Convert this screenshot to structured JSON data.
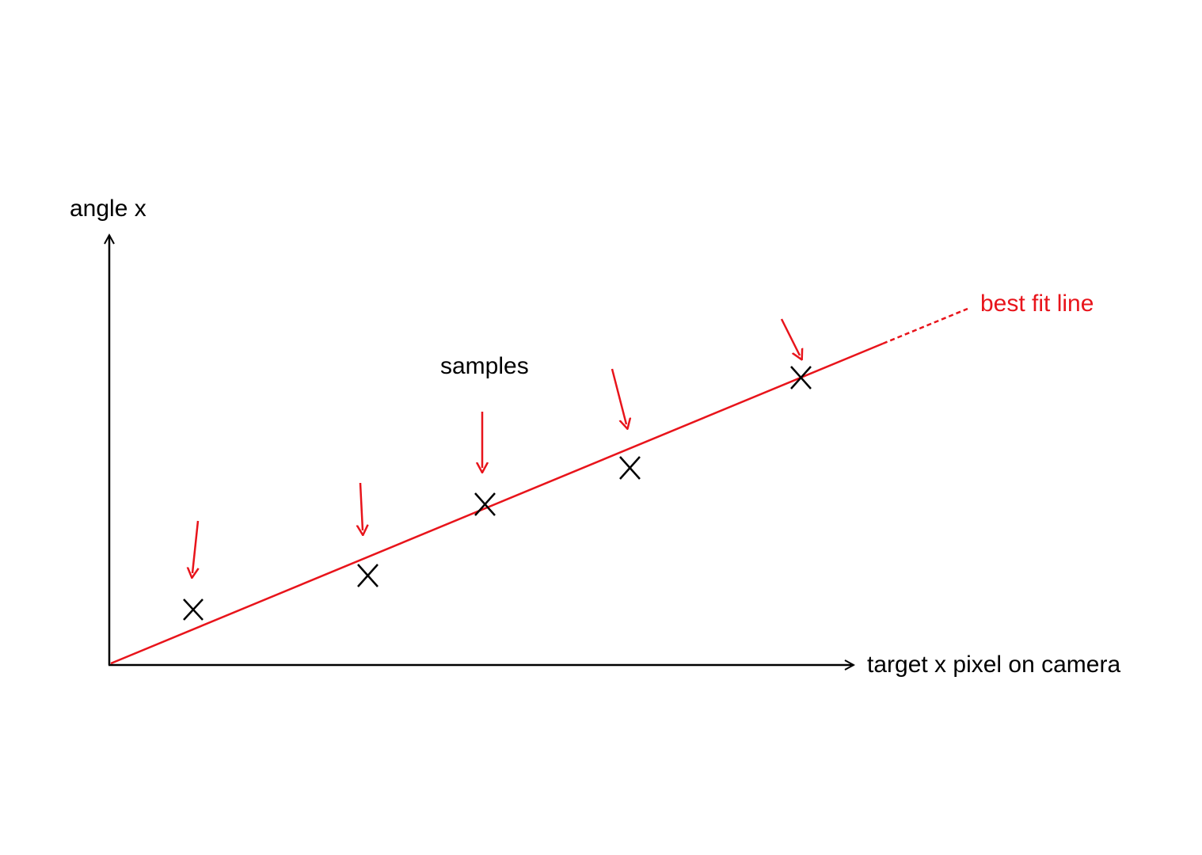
{
  "labels": {
    "y_axis": "angle x",
    "x_axis": "target x pixel on camera",
    "samples": "samples",
    "fit_line": "best fit line"
  },
  "colors": {
    "axis": "#000000",
    "fit_line": "#e8141b",
    "marker": "#000000",
    "pointer_arrow": "#e8141b",
    "background": "#ffffff"
  },
  "marker_symbol": "x-mark",
  "sample_count": 5
}
